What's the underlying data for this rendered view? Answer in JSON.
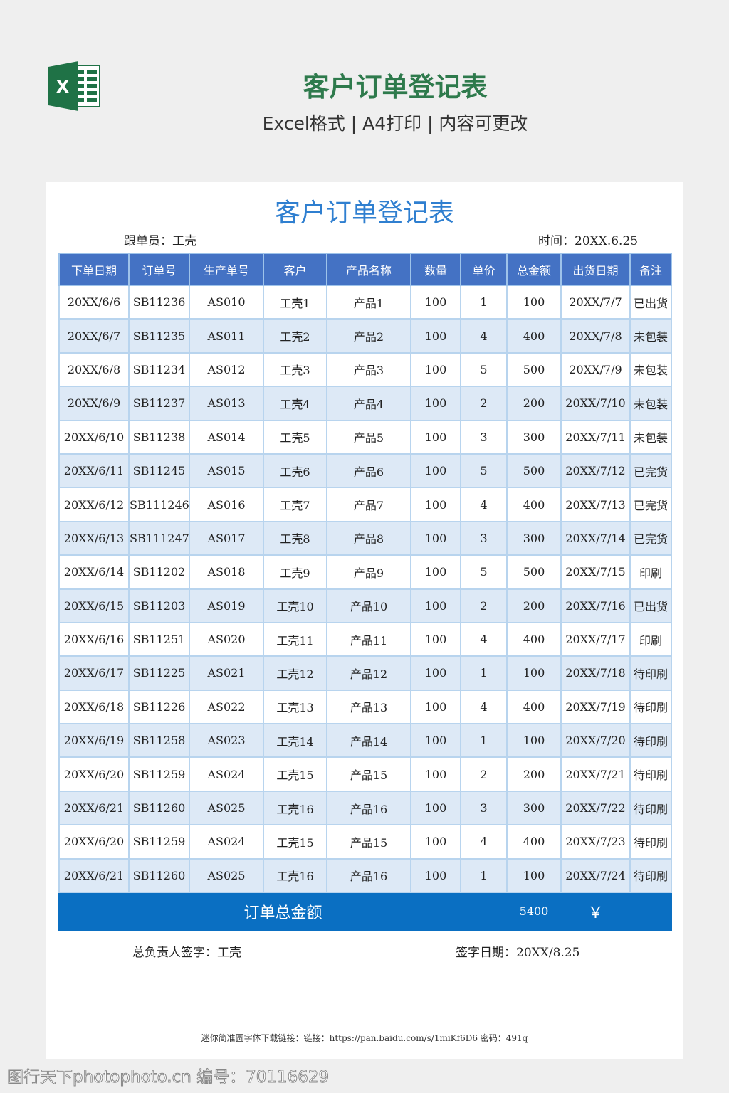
{
  "header": {
    "title": "客户订单登记表",
    "subtitle": "Excel格式 | A4打印 | 内容可更改",
    "logo_letter": "X"
  },
  "sheet": {
    "title": "客户订单登记表",
    "follower": "跟单员：工壳",
    "time": "时间：20XX.6.25",
    "columns": [
      "下单日期",
      "订单号",
      "生产单号",
      "客户",
      "产品名称",
      "数量",
      "单价",
      "总金额",
      "出货日期",
      "备注"
    ],
    "rows": [
      [
        "20XX/6/6",
        "SB11236",
        "AS010",
        "工壳1",
        "产品1",
        "100",
        "1",
        "100",
        "20XX/7/7",
        "已出货"
      ],
      [
        "20XX/6/7",
        "SB11235",
        "AS011",
        "工壳2",
        "产品2",
        "100",
        "4",
        "400",
        "20XX/7/8",
        "未包装"
      ],
      [
        "20XX/6/8",
        "SB11234",
        "AS012",
        "工壳3",
        "产品3",
        "100",
        "5",
        "500",
        "20XX/7/9",
        "未包装"
      ],
      [
        "20XX/6/9",
        "SB11237",
        "AS013",
        "工壳4",
        "产品4",
        "100",
        "2",
        "200",
        "20XX/7/10",
        "未包装"
      ],
      [
        "20XX/6/10",
        "SB11238",
        "AS014",
        "工壳5",
        "产品5",
        "100",
        "3",
        "300",
        "20XX/7/11",
        "未包装"
      ],
      [
        "20XX/6/11",
        "SB11245",
        "AS015",
        "工壳6",
        "产品6",
        "100",
        "5",
        "500",
        "20XX/7/12",
        "已完货"
      ],
      [
        "20XX/6/12",
        "SB111246",
        "AS016",
        "工壳7",
        "产品7",
        "100",
        "4",
        "400",
        "20XX/7/13",
        "已完货"
      ],
      [
        "20XX/6/13",
        "SB111247",
        "AS017",
        "工壳8",
        "产品8",
        "100",
        "3",
        "300",
        "20XX/7/14",
        "已完货"
      ],
      [
        "20XX/6/14",
        "SB11202",
        "AS018",
        "工壳9",
        "产品9",
        "100",
        "5",
        "500",
        "20XX/7/15",
        "印刷"
      ],
      [
        "20XX/6/15",
        "SB11203",
        "AS019",
        "工壳10",
        "产品10",
        "100",
        "2",
        "200",
        "20XX/7/16",
        "已出货"
      ],
      [
        "20XX/6/16",
        "SB11251",
        "AS020",
        "工壳11",
        "产品11",
        "100",
        "4",
        "400",
        "20XX/7/17",
        "印刷"
      ],
      [
        "20XX/6/17",
        "SB11225",
        "AS021",
        "工壳12",
        "产品12",
        "100",
        "1",
        "100",
        "20XX/7/18",
        "待印刷"
      ],
      [
        "20XX/6/18",
        "SB11226",
        "AS022",
        "工壳13",
        "产品13",
        "100",
        "4",
        "400",
        "20XX/7/19",
        "待印刷"
      ],
      [
        "20XX/6/19",
        "SB11258",
        "AS023",
        "工壳14",
        "产品14",
        "100",
        "1",
        "100",
        "20XX/7/20",
        "待印刷"
      ],
      [
        "20XX/6/20",
        "SB11259",
        "AS024",
        "工壳15",
        "产品15",
        "100",
        "2",
        "200",
        "20XX/7/21",
        "待印刷"
      ],
      [
        "20XX/6/21",
        "SB11260",
        "AS025",
        "工壳16",
        "产品16",
        "100",
        "3",
        "300",
        "20XX/7/22",
        "待印刷"
      ],
      [
        "20XX/6/20",
        "SB11259",
        "AS024",
        "工壳15",
        "产品15",
        "100",
        "4",
        "400",
        "20XX/7/23",
        "待印刷"
      ],
      [
        "20XX/6/21",
        "SB11260",
        "AS025",
        "工壳16",
        "产品16",
        "100",
        "1",
        "100",
        "20XX/7/24",
        "待印刷"
      ]
    ],
    "total_label": "订单总金额",
    "total_value": "5400",
    "currency": "￥",
    "signer": "总负责人签字：工壳",
    "sign_date": "签字日期：20XX/8.25",
    "footer": "迷你简准圆字体下载链接：链接：https://pan.baidu.com/s/1miKf6D6 密码：491q"
  },
  "watermark": "图行天下photophoto.cn 编号：70116629",
  "colors": {
    "header_bg": "#4472c4",
    "alt_row": "#dde9f6",
    "total_bg": "#0a6fc2",
    "title_blue": "#2f7fd0",
    "brand_green": "#2e7a4c"
  }
}
